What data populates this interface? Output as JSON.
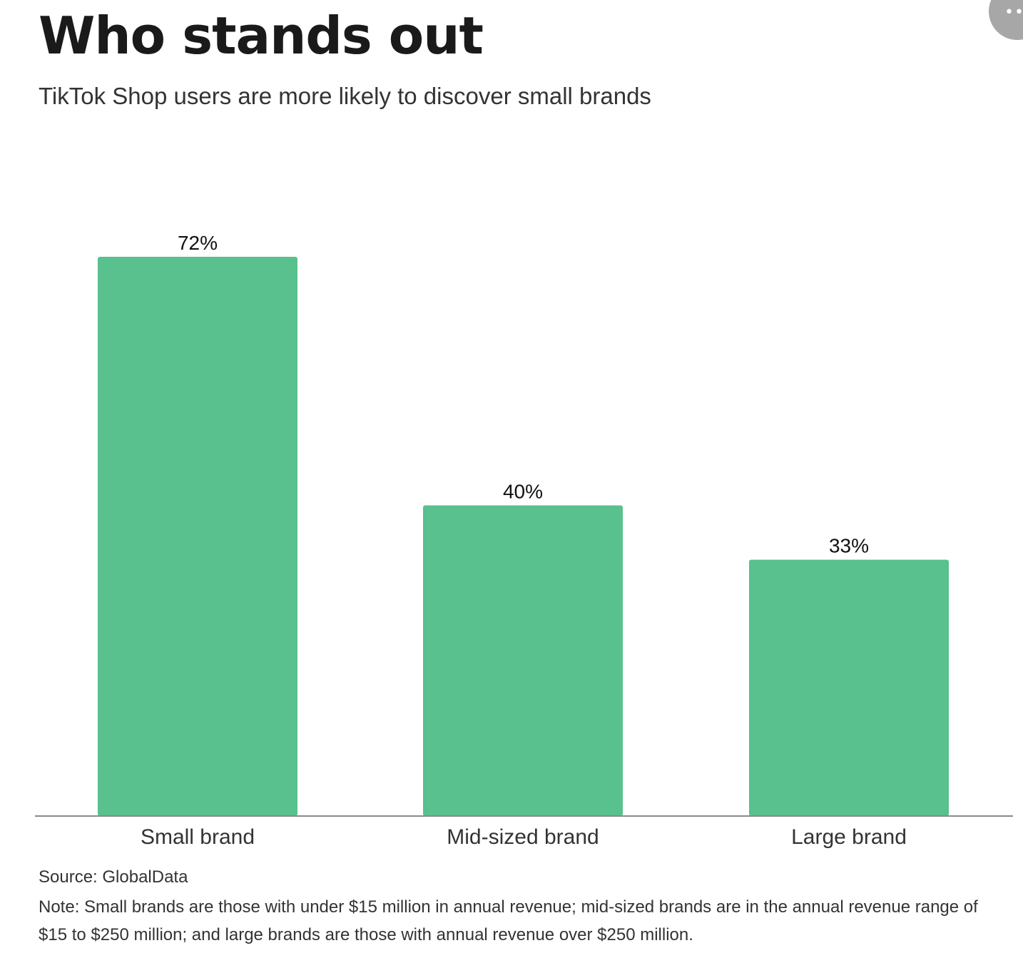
{
  "header": {
    "title": "Who stands out",
    "subtitle": "TikTok Shop users are more likely to discover small brands"
  },
  "more_button": {
    "icon": "more-horizontal-icon",
    "glyph": "•••"
  },
  "chart_data": {
    "type": "bar",
    "categories": [
      "Small brand",
      "Mid-sized brand",
      "Large brand"
    ],
    "values": [
      72,
      40,
      33
    ],
    "value_labels": [
      "72%",
      "40%",
      "33%"
    ],
    "ylim": [
      0,
      72
    ],
    "grid": false,
    "bar_color": "#58c18d",
    "axis_color": "#8a8a8a"
  },
  "footer": {
    "source": "Source: GlobalData",
    "note": "Note: Small brands are those with under $15 million in annual revenue; mid-sized brands are in the annual revenue range of $15 to $250 million; and large brands are those with  annual revenue over $250 million."
  }
}
